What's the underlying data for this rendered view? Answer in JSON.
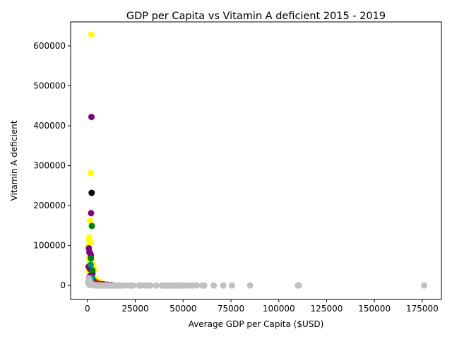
{
  "chart_data": {
    "type": "scatter",
    "title": "GDP per Capita vs Vitamin A deficient 2015 - 2019",
    "xlabel": "Average GDP per Capita ($USD)",
    "ylabel": "Vitamin A deficient",
    "xlim": [
      -8800,
      185000
    ],
    "ylim": [
      -35000,
      660000
    ],
    "xticks": [
      0,
      25000,
      50000,
      75000,
      100000,
      125000,
      150000,
      175000
    ],
    "xtick_labels": [
      "0",
      "25000",
      "50000",
      "75000",
      "100000",
      "125000",
      "150000",
      "175000"
    ],
    "yticks": [
      0,
      100000,
      200000,
      300000,
      400000,
      500000,
      600000
    ],
    "ytick_labels": [
      "0",
      "100000",
      "200000",
      "300000",
      "400000",
      "500000",
      "600000"
    ],
    "grid": false,
    "legend": "none",
    "colors": {
      "yellow": "#ffff00",
      "purple": "#800080",
      "black": "#000000",
      "green": "#008000",
      "gray": "#c0c0c0",
      "teal": "#008b8b",
      "brown": "#a52a2a"
    },
    "series": [
      {
        "color": "yellow",
        "points": [
          [
            2000,
            628000
          ],
          [
            1800,
            281000
          ],
          [
            1300,
            162000
          ],
          [
            900,
            120000
          ],
          [
            1100,
            112000
          ],
          [
            1400,
            107000
          ],
          [
            700,
            100000
          ],
          [
            1200,
            83000
          ],
          [
            900,
            68000
          ],
          [
            1600,
            62000
          ],
          [
            2400,
            58000
          ],
          [
            1000,
            54000
          ],
          [
            3000,
            48000
          ],
          [
            2100,
            45000
          ],
          [
            3400,
            40000
          ],
          [
            600,
            35000
          ],
          [
            1500,
            28000
          ],
          [
            2700,
            22000
          ],
          [
            4200,
            16000
          ],
          [
            5500,
            11000
          ],
          [
            6800,
            8000
          ],
          [
            7500,
            5000
          ],
          [
            9000,
            3000
          ],
          [
            3800,
            9000
          ]
        ]
      },
      {
        "color": "purple",
        "points": [
          [
            2100,
            422000
          ],
          [
            1900,
            181000
          ],
          [
            700,
            93000
          ],
          [
            1000,
            83000
          ],
          [
            1500,
            80000
          ],
          [
            1800,
            75000
          ],
          [
            600,
            47000
          ],
          [
            1200,
            42000
          ],
          [
            2000,
            39000
          ],
          [
            2600,
            30000
          ],
          [
            1600,
            25000
          ],
          [
            900,
            20000
          ],
          [
            2300,
            17000
          ],
          [
            3200,
            12000
          ],
          [
            4000,
            9000
          ],
          [
            5000,
            6000
          ],
          [
            6200,
            4000
          ],
          [
            7800,
            3500
          ],
          [
            8800,
            2500
          ],
          [
            10500,
            2000
          ],
          [
            12500,
            1500
          ],
          [
            3600,
            1000
          ],
          [
            4800,
            500
          ]
        ]
      },
      {
        "color": "black",
        "points": [
          [
            2200,
            232000
          ]
        ]
      },
      {
        "color": "green",
        "points": [
          [
            2300,
            149000
          ],
          [
            1800,
            68000
          ],
          [
            2600,
            38000
          ]
        ]
      },
      {
        "color": "teal",
        "points": [
          [
            1700,
            52000
          ],
          [
            2500,
            19000
          ]
        ]
      },
      {
        "color": "brown",
        "points": [
          [
            4500,
            7000
          ],
          [
            7000,
            3000
          ],
          [
            9500,
            1500
          ]
        ]
      },
      {
        "color": "gray",
        "points": [
          [
            300,
            8000
          ],
          [
            500,
            5000
          ],
          [
            800,
            3000
          ],
          [
            1200,
            12000
          ],
          [
            1600,
            6000
          ],
          [
            2000,
            2000
          ],
          [
            2500,
            1000
          ],
          [
            3000,
            500
          ],
          [
            3500,
            800
          ],
          [
            4000,
            300
          ],
          [
            4500,
            200
          ],
          [
            5000,
            100
          ],
          [
            5500,
            150
          ],
          [
            6000,
            100
          ],
          [
            6500,
            50
          ],
          [
            7000,
            80
          ],
          [
            7500,
            40
          ],
          [
            8000,
            60
          ],
          [
            8500,
            30
          ],
          [
            9000,
            20
          ],
          [
            10000,
            40
          ],
          [
            11000,
            20
          ],
          [
            12000,
            30
          ],
          [
            13000,
            10
          ],
          [
            14000,
            20
          ],
          [
            15000,
            10
          ],
          [
            16000,
            5
          ],
          [
            17000,
            10
          ],
          [
            18000,
            5
          ],
          [
            20000,
            5
          ],
          [
            22000,
            5
          ],
          [
            23000,
            5
          ],
          [
            24000,
            5
          ],
          [
            27000,
            5
          ],
          [
            28000,
            5
          ],
          [
            30000,
            5
          ],
          [
            32000,
            5
          ],
          [
            33000,
            5
          ],
          [
            36000,
            5
          ],
          [
            39000,
            5
          ],
          [
            40000,
            5
          ],
          [
            41000,
            5
          ],
          [
            42000,
            5
          ],
          [
            43000,
            5
          ],
          [
            44000,
            5
          ],
          [
            45000,
            5
          ],
          [
            46000,
            5
          ],
          [
            47000,
            5
          ],
          [
            48000,
            5
          ],
          [
            49000,
            5
          ],
          [
            50000,
            5
          ],
          [
            51000,
            5
          ],
          [
            53000,
            5
          ],
          [
            55000,
            5
          ],
          [
            57000,
            5
          ],
          [
            60000,
            5
          ],
          [
            61000,
            5
          ],
          [
            66000,
            5
          ],
          [
            71000,
            5
          ],
          [
            75500,
            5
          ],
          [
            85000,
            5
          ],
          [
            110000,
            5
          ],
          [
            110500,
            5
          ],
          [
            176000,
            5
          ],
          [
            1000,
            1500
          ],
          [
            1400,
            9000
          ],
          [
            1900,
            4000
          ],
          [
            2800,
            2500
          ],
          [
            800,
            18000
          ]
        ]
      }
    ]
  }
}
